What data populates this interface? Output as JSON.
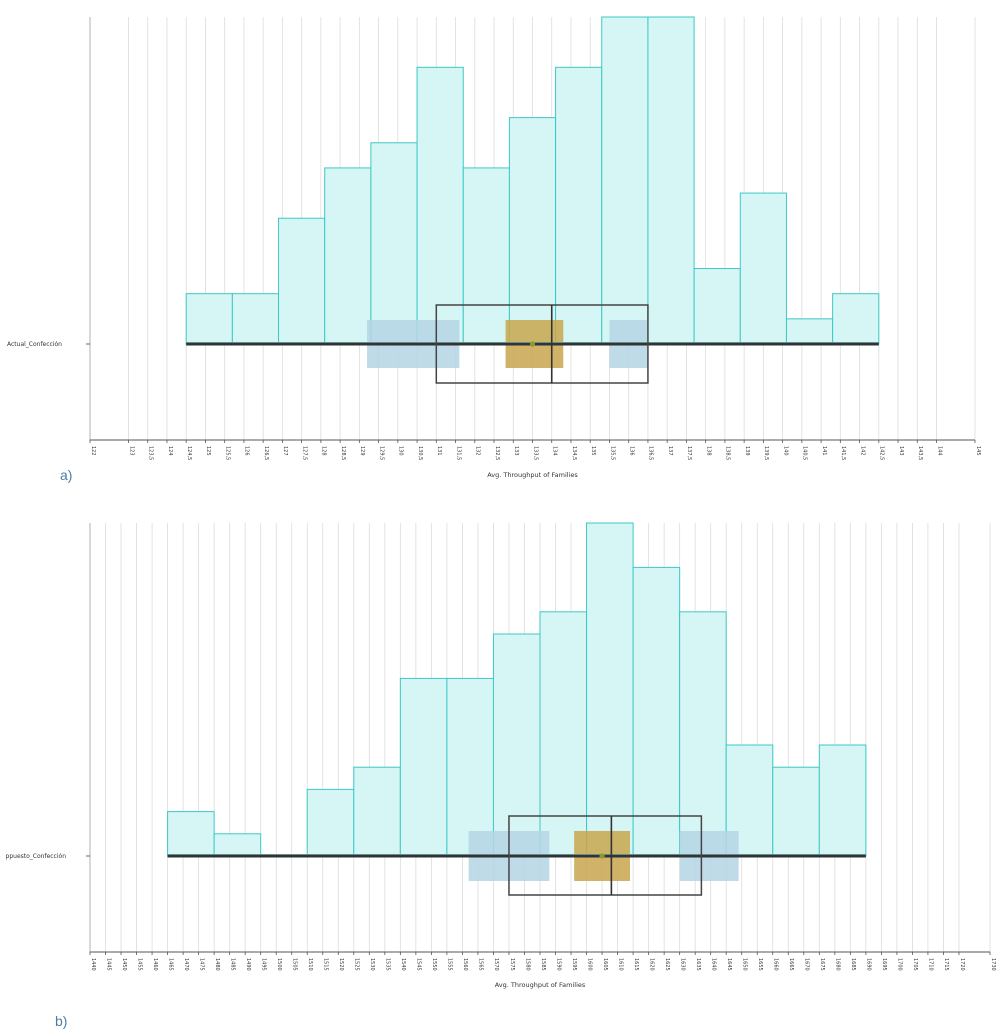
{
  "chart_data": [
    {
      "type": "histogram",
      "panel_label": "a)",
      "category_label": "Actual_Confección",
      "xlabel": "Avg. Throughput of Families",
      "xlim": [
        122,
        145
      ],
      "ticks": [
        "122",
        "123",
        "123,5",
        "124",
        "124,5",
        "125",
        "125,5",
        "126",
        "126,5",
        "127",
        "127,5",
        "128",
        "128,5",
        "129",
        "129,5",
        "130",
        "130,5",
        "131",
        "131,5",
        "132",
        "132,5",
        "133",
        "133,5",
        "134",
        "134,5",
        "135",
        "135,5",
        "136",
        "136,5",
        "137",
        "137,5",
        "138",
        "138,5",
        "139",
        "139,5",
        "140",
        "140,5",
        "141",
        "141,5",
        "142",
        "142,5",
        "143",
        "143,5",
        "144",
        "145"
      ],
      "bin_edges": [
        124.5,
        125.7,
        126.9,
        128.1,
        129.3,
        130.5,
        131.7,
        132.9,
        134.1,
        135.3,
        136.5,
        137.7,
        138.9,
        140.1,
        141.3,
        142.5
      ],
      "counts": [
        2,
        2,
        5,
        7,
        8,
        11,
        7,
        9,
        11,
        13,
        13,
        3,
        6,
        1,
        2
      ],
      "count_max": 13,
      "box": {
        "whisker_low": 124.5,
        "q1": 131.0,
        "median": 134.0,
        "q3": 136.5,
        "whisker_high": 142.5,
        "mean": 133.5
      },
      "mean_ci": [
        132.8,
        134.3
      ],
      "median_ci": [
        133.7,
        134.3
      ],
      "q1_ci": [
        129.2,
        131.6
      ],
      "q3_ci": [
        135.5,
        136.5
      ],
      "colors": {
        "bar_fill": "#d6f6f5",
        "bar_stroke": "#3cc8c6",
        "ci_blue": "#b5d5e4",
        "ci_mean": "#c8a64e",
        "mean_dot": "#8c9a2e",
        "whisker": "#333333"
      }
    },
    {
      "type": "histogram",
      "panel_label": "b)",
      "category_label": "ppuesto_Confección",
      "xlabel": "Avg. Throughput of Families",
      "xlim": [
        1440,
        1730
      ],
      "ticks": [
        "1440",
        "1445",
        "1450",
        "1455",
        "1460",
        "1465",
        "1470",
        "1475",
        "1480",
        "1485",
        "1490",
        "1495",
        "1500",
        "1505",
        "1510",
        "1515",
        "1520",
        "1525",
        "1530",
        "1535",
        "1540",
        "1545",
        "1550",
        "1555",
        "1560",
        "1565",
        "1570",
        "1575",
        "1580",
        "1585",
        "1590",
        "1595",
        "1600",
        "1605",
        "1610",
        "1615",
        "1620",
        "1625",
        "1630",
        "1635",
        "1640",
        "1645",
        "1650",
        "1655",
        "1660",
        "1665",
        "1670",
        "1675",
        "1680",
        "1685",
        "1690",
        "1695",
        "1700",
        "1705",
        "1710",
        "1715",
        "1720",
        "1730"
      ],
      "bin_edges": [
        1465,
        1480,
        1495,
        1510,
        1525,
        1540,
        1555,
        1570,
        1585,
        1600,
        1615,
        1630,
        1645,
        1660,
        1675,
        1690
      ],
      "counts": [
        2,
        1,
        0,
        3,
        4,
        8,
        8,
        10,
        11,
        15,
        13,
        11,
        5,
        4,
        5
      ],
      "count_max": 15,
      "box": {
        "whisker_low": 1465,
        "q1": 1575,
        "median": 1608,
        "q3": 1637,
        "whisker_high": 1690,
        "mean": 1605
      },
      "mean_ci": [
        1596,
        1614
      ],
      "median_ci": [
        1596,
        1614
      ],
      "q1_ci": [
        1562,
        1588
      ],
      "q3_ci": [
        1630,
        1649
      ],
      "colors": {
        "bar_fill": "#d6f6f5",
        "bar_stroke": "#3cc8c6",
        "ci_blue": "#b5d5e4",
        "ci_mean": "#c8a64e",
        "mean_dot": "#8c9a2e",
        "whisker": "#333333"
      }
    }
  ]
}
